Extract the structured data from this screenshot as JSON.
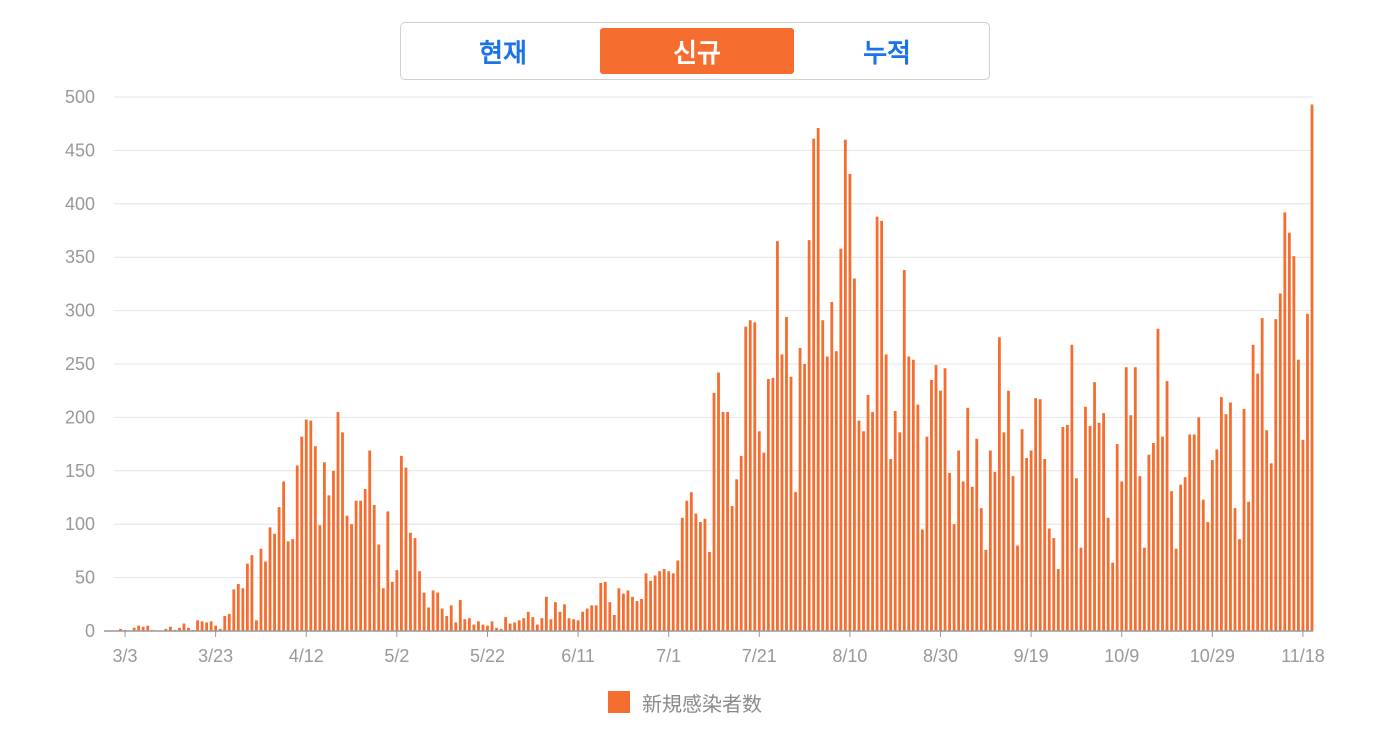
{
  "tabs": [
    {
      "label": "현재",
      "active": false
    },
    {
      "label": "신규",
      "active": true
    },
    {
      "label": "누적",
      "active": false
    }
  ],
  "colors": {
    "bar": "#f56e30",
    "tab_active_bg": "#f56e30",
    "tab_active_text": "#ffffff",
    "tab_inactive_text": "#1a73e8",
    "grid": "#e4e4e4",
    "axis": "#999999"
  },
  "chart_data": {
    "type": "bar",
    "title": "",
    "xlabel": "",
    "ylabel": "",
    "ylim": [
      0,
      500
    ],
    "yticks": [
      0,
      50,
      100,
      150,
      200,
      250,
      300,
      350,
      400,
      450,
      500
    ],
    "grid": true,
    "legend": "bottom-center",
    "x_tick_labels": [
      "3/3",
      "3/23",
      "4/12",
      "5/2",
      "5/22",
      "6/11",
      "7/1",
      "7/21",
      "8/10",
      "8/30",
      "9/19",
      "10/9",
      "10/29",
      "11/18"
    ],
    "x_start": "3/1",
    "series": [
      {
        "name": "新規感染者数",
        "values": [
          0,
          2,
          1,
          0,
          3,
          5,
          4,
          5,
          1,
          0,
          0,
          2,
          4,
          1,
          3,
          7,
          3,
          1,
          10,
          9,
          8,
          9,
          5,
          2,
          14,
          16,
          39,
          44,
          40,
          63,
          71,
          10,
          77,
          65,
          97,
          91,
          116,
          140,
          84,
          86,
          155,
          182,
          198,
          197,
          173,
          99,
          158,
          127,
          150,
          205,
          186,
          108,
          100,
          122,
          122,
          133,
          169,
          118,
          81,
          40,
          112,
          46,
          57,
          164,
          153,
          92,
          87,
          56,
          36,
          22,
          38,
          36,
          21,
          14,
          24,
          8,
          29,
          11,
          12,
          6,
          9,
          6,
          5,
          9,
          3,
          2,
          13,
          7,
          8,
          10,
          12,
          18,
          13,
          6,
          12,
          32,
          11,
          27,
          18,
          25,
          12,
          11,
          10,
          18,
          21,
          24,
          24,
          45,
          46,
          27,
          15,
          40,
          35,
          38,
          32,
          28,
          30,
          54,
          47,
          52,
          56,
          58,
          56,
          54,
          66,
          106,
          122,
          130,
          110,
          102,
          105,
          74,
          223,
          242,
          205,
          205,
          117,
          142,
          164,
          285,
          291,
          289,
          187,
          167,
          236,
          237,
          365,
          259,
          294,
          238,
          130,
          265,
          250,
          366,
          461,
          471,
          291,
          257,
          308,
          262,
          358,
          460,
          428,
          330,
          197,
          187,
          221,
          205,
          388,
          384,
          259,
          161,
          206,
          186,
          338,
          257,
          254,
          212,
          95,
          182,
          235,
          249,
          225,
          246,
          148,
          100,
          169,
          140,
          209,
          135,
          180,
          115,
          76,
          169,
          149,
          275,
          186,
          225,
          145,
          80,
          189,
          162,
          169,
          218,
          217,
          161,
          96,
          87,
          58,
          191,
          193,
          268,
          143,
          78,
          210,
          192,
          233,
          195,
          204,
          106,
          64,
          175,
          140,
          247,
          202,
          247,
          145,
          78,
          165,
          176,
          283,
          182,
          234,
          131,
          77,
          137,
          144,
          184,
          184,
          200,
          123,
          102,
          160,
          170,
          219,
          203,
          214,
          115,
          86,
          208,
          121,
          268,
          241,
          293,
          188,
          157,
          292,
          316,
          392,
          373,
          351,
          254,
          179,
          297,
          493
        ]
      }
    ]
  }
}
